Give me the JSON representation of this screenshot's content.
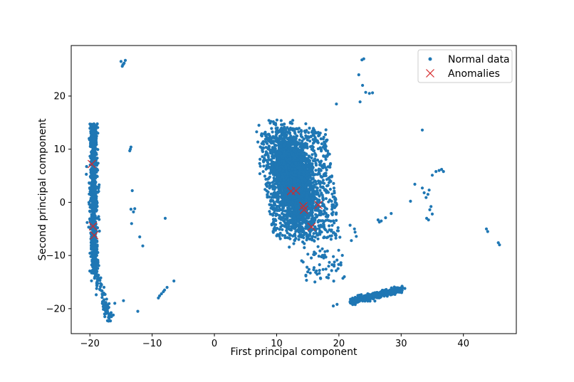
{
  "chart_data": {
    "type": "scatter",
    "title": "",
    "xlabel": "First principal component",
    "ylabel": "Second principal component",
    "xlim": [
      -23,
      48.5
    ],
    "ylim": [
      -24.7,
      29.5
    ],
    "x_ticks": [
      -20,
      -10,
      0,
      10,
      20,
      30,
      40
    ],
    "y_ticks": [
      -20,
      -10,
      0,
      10,
      20
    ],
    "x_tick_labels": [
      "−20",
      "−10",
      "0",
      "10",
      "20",
      "30",
      "40"
    ],
    "y_tick_labels": [
      "−20",
      "−10",
      "0",
      "10",
      "20"
    ],
    "grid": false,
    "legend": "top-right",
    "colors": {
      "normal": "#1f77b4",
      "anomaly": "#d62728"
    },
    "series": [
      {
        "name": "Normal data",
        "marker": "point",
        "clusters": [
          {
            "region": "left-vertical-band",
            "x_range": [
              -20.3,
              -18.6
            ],
            "y_range": [
              -13.5,
              14.8
            ]
          },
          {
            "region": "left-band-tail",
            "x_range": [
              -19.2,
              -16.5
            ],
            "y_range": [
              -22.5,
              -13.5
            ]
          },
          {
            "region": "central-mass",
            "x_range": [
              8,
              20
            ],
            "y_range": [
              -9,
              15.5
            ]
          },
          {
            "region": "lower-right-band",
            "x_range": [
              21.5,
              30.5
            ],
            "y_range": [
              -19,
              -16
            ]
          }
        ],
        "points": [
          [
            -15,
            26.5
          ],
          [
            -14.7,
            25.9
          ],
          [
            -14.5,
            26.2
          ],
          [
            -14.8,
            25.6
          ],
          [
            -14.3,
            26.7
          ],
          [
            -14.6,
            26.0
          ],
          [
            -13.5,
            10
          ],
          [
            -13.4,
            10.4
          ],
          [
            -13.6,
            9.7
          ],
          [
            -13.2,
            2.2
          ],
          [
            -13.4,
            -1.3
          ],
          [
            -13.0,
            -1.8
          ],
          [
            -12.8,
            -1.2
          ],
          [
            -13.3,
            -4
          ],
          [
            -12,
            -6.5
          ],
          [
            -11.5,
            -8.2
          ],
          [
            -7.9,
            -3
          ],
          [
            -9,
            -18
          ],
          [
            -8.8,
            -17.6
          ],
          [
            -8.5,
            -17.2
          ],
          [
            -8.2,
            -16.8
          ],
          [
            -8.0,
            -16.5
          ],
          [
            -7.6,
            -16.0
          ],
          [
            -6.5,
            -14.8
          ],
          [
            -14.6,
            -18.5
          ],
          [
            -16.0,
            -19
          ],
          [
            -12.3,
            -20.5
          ],
          [
            -17.8,
            -18.5
          ],
          [
            -17.2,
            -20.5
          ],
          [
            -16.8,
            -21.3
          ],
          [
            -16.7,
            -22.3
          ],
          [
            19.6,
            18.5
          ],
          [
            23.7,
            26.8
          ],
          [
            24.0,
            27.0
          ],
          [
            23.2,
            24.0
          ],
          [
            23.8,
            22.0
          ],
          [
            23.4,
            18.9
          ],
          [
            24.3,
            20.7
          ],
          [
            25.4,
            20.6
          ],
          [
            24.9,
            20.5
          ],
          [
            22.5,
            -5
          ],
          [
            22.6,
            -5.6
          ],
          [
            21.8,
            -4.3
          ],
          [
            22.0,
            -7.2
          ],
          [
            22.8,
            -6.4
          ],
          [
            26.3,
            -3.3
          ],
          [
            26.5,
            -3.7
          ],
          [
            26.8,
            -3.5
          ],
          [
            28.4,
            -2.1
          ],
          [
            27.5,
            -2.9
          ],
          [
            33.4,
            13.6
          ],
          [
            33.4,
            2.7
          ],
          [
            34.5,
            2.3
          ],
          [
            33.7,
            1.8
          ],
          [
            34.0,
            0.9
          ],
          [
            34.3,
            1.5
          ],
          [
            34.8,
            -0.8
          ],
          [
            34.6,
            -1.4
          ],
          [
            35.0,
            -2.2
          ],
          [
            35.0,
            5.1
          ],
          [
            35.6,
            5.8
          ],
          [
            36.1,
            6.0
          ],
          [
            36.5,
            6.2
          ],
          [
            36.8,
            5.8
          ],
          [
            32.2,
            3.4
          ],
          [
            31.5,
            0.2
          ],
          [
            34.1,
            -3.0
          ],
          [
            34.4,
            -3.3
          ],
          [
            43.7,
            -5.0
          ],
          [
            43.9,
            -5.5
          ],
          [
            45.6,
            -7.6
          ],
          [
            45.8,
            -8.0
          ],
          [
            30.6,
            -16.2
          ],
          [
            29.7,
            -16.5
          ],
          [
            27.6,
            -16.4
          ],
          [
            21.8,
            -18.8
          ],
          [
            19.1,
            -19.5
          ],
          [
            19.7,
            -19.2
          ]
        ]
      },
      {
        "name": "Anomalies",
        "marker": "x",
        "points": [
          [
            -19.7,
            7.2
          ],
          [
            -19.5,
            -4.5
          ],
          [
            -19.3,
            -6.2
          ],
          [
            12.3,
            2.1
          ],
          [
            13.1,
            2.2
          ],
          [
            14.3,
            -0.7
          ],
          [
            14.4,
            -1.4
          ],
          [
            16.7,
            -0.5
          ],
          [
            15.6,
            -4.6
          ]
        ]
      }
    ]
  }
}
